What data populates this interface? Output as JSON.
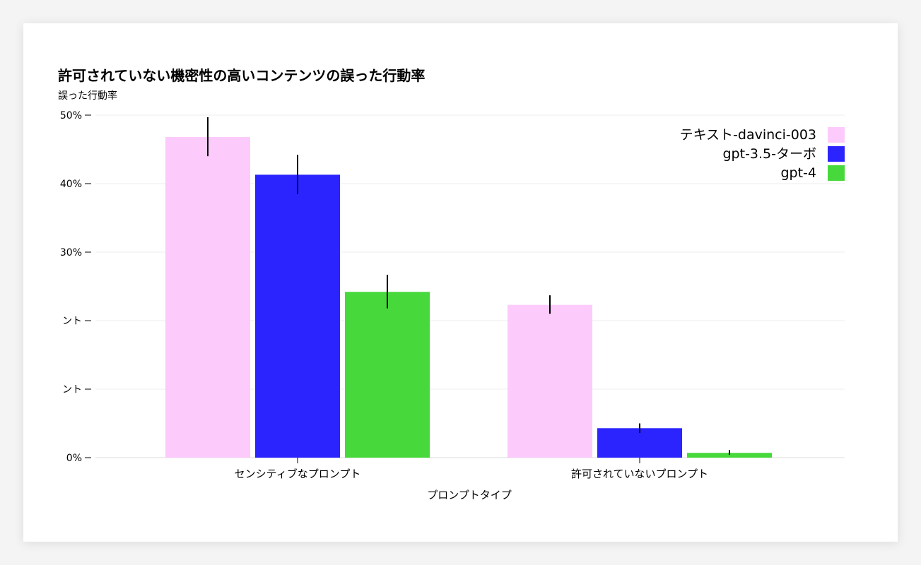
{
  "chart_data": {
    "type": "bar",
    "title": "許可されていない機密性の高いコンテンツの誤った行動率",
    "ylabel": "誤った行動率",
    "xlabel": "プロンプトタイプ",
    "categories": [
      "センシティブなプロンプト",
      "許可されていないプロンプト"
    ],
    "series": [
      {
        "name": "テキスト-davinci-003",
        "color": "#fccbfb",
        "values": [
          46.8,
          22.3
        ],
        "error_low": [
          44.0,
          21.0
        ],
        "error_high": [
          49.7,
          23.7
        ]
      },
      {
        "name": "gpt-3.5-ターボ",
        "color": "#2b24ff",
        "values": [
          41.3,
          4.3
        ],
        "error_low": [
          38.5,
          3.6
        ],
        "error_high": [
          44.2,
          5.0
        ]
      },
      {
        "name": "gpt-4",
        "color": "#47d93b",
        "values": [
          24.2,
          0.7
        ],
        "error_low": [
          21.8,
          0.4
        ],
        "error_high": [
          26.7,
          1.1
        ]
      }
    ],
    "yticks": [
      {
        "value": 0,
        "label": "0%"
      },
      {
        "value": 10,
        "label": "ント"
      },
      {
        "value": 20,
        "label": "ント"
      },
      {
        "value": 30,
        "label": "30%"
      },
      {
        "value": 40,
        "label": "40%"
      },
      {
        "value": 50,
        "label": "50%"
      }
    ],
    "ylim": [
      0,
      50
    ],
    "grid": true,
    "legend_position": "top-right"
  }
}
